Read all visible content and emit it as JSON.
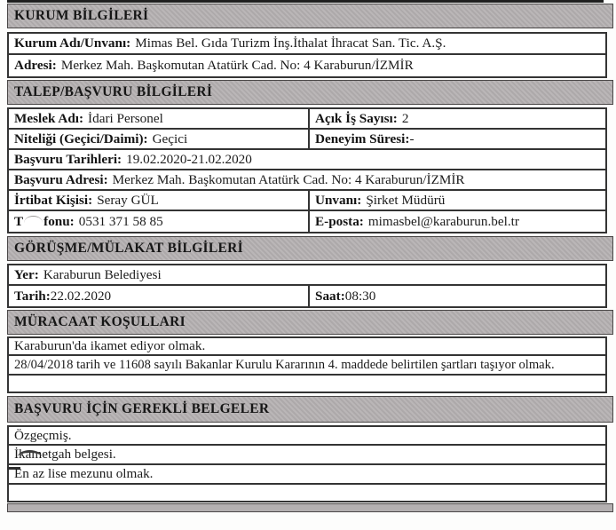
{
  "colors": {
    "header_band_bg": "#b6b2b3",
    "border": "#343434",
    "text": "#1b1b1b",
    "page_bg": "#fdfdfc"
  },
  "sections": {
    "kurum": {
      "title": "KURUM BİLGİLERİ",
      "kurum_adi": {
        "label": "Kurum Adı/Unvanı:",
        "value": "Mimas Bel. Gıda Turizm İnş.İthalat İhracat San. Tic. A.Ş."
      },
      "adresi": {
        "label": "Adresi:",
        "value": "Merkez Mah. Başkomutan Atatürk Cad. No: 4 Karaburun/İZMİR"
      }
    },
    "talep": {
      "title": "TALEP/BAŞVURU BİLGİLERİ",
      "meslek_adi": {
        "label": "Meslek Adı:",
        "value": "İdari Personel"
      },
      "acik_is_sayisi": {
        "label": "Açık İş Sayısı:",
        "value": "2"
      },
      "niteligi": {
        "label": "Niteliği (Geçici/Daimi):",
        "value": "Geçici"
      },
      "deneyim_suresi": {
        "label": "Deneyim Süresi:",
        "value": "-"
      },
      "basvuru_tarihleri": {
        "label": "Başvuru Tarihleri:",
        "value": "19.02.2020-21.02.2020"
      },
      "basvuru_adresi": {
        "label": "Başvuru Adresi:",
        "value": "Merkez Mah. Başkomutan Atatürk Cad. No: 4 Karaburun/İZMİR"
      },
      "irtibat_kisisi": {
        "label": "İrtibat Kişisi:",
        "value": "Seray GÜL"
      },
      "unvani": {
        "label": "Unvanı:",
        "value": "Şirket Müdürü"
      },
      "telefonu": {
        "label_left": "T",
        "label_right": "fonu:",
        "value": "0531 371 58 85"
      },
      "eposta": {
        "label": "E-posta:",
        "value": "mimasbel@karaburun.bel.tr"
      }
    },
    "gorusme": {
      "title": "GÖRÜŞME/MÜLAKAT BİLGİLERİ",
      "yer": {
        "label": "Yer:",
        "value": "Karaburun Belediyesi"
      },
      "tarih": {
        "label": "Tarih:",
        "value": "22.02.2020"
      },
      "saat": {
        "label": "Saat:",
        "value": "08:30"
      }
    },
    "muracaat": {
      "title": "MÜRACAAT KOŞULLARI",
      "items": [
        "Karaburun'da ikamet ediyor olmak.",
        "28/04/2018 tarih ve 11608 sayılı Bakanlar Kurulu Kararının 4. maddede belirtilen şartları taşıyor olmak."
      ]
    },
    "belgeler": {
      "title": "BAŞVURU İÇİN GEREKLİ BELGELER",
      "items": [
        "Özgeçmiş.",
        "İkametgah belgesi.",
        "En az lise mezunu olmak."
      ]
    }
  }
}
